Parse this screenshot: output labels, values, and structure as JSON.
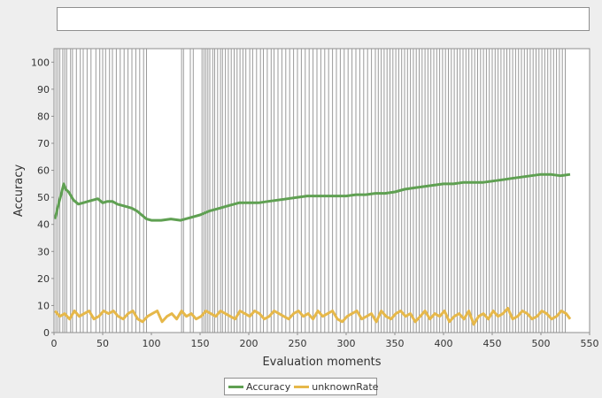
{
  "chart_data": {
    "type": "line",
    "title": "",
    "xlabel": "Evaluation moments",
    "ylabel": "Accuracy",
    "xlim": [
      0,
      550
    ],
    "ylim": [
      0,
      105
    ],
    "x_ticks": [
      0,
      50,
      100,
      150,
      200,
      250,
      300,
      350,
      400,
      450,
      500,
      550
    ],
    "y_ticks": [
      0,
      10,
      20,
      30,
      40,
      50,
      60,
      70,
      80,
      90,
      100
    ],
    "grid": false,
    "legend_position": "bottom-center",
    "colors": {
      "Accuracy": "#5fa052",
      "unknownRate": "#e6b84a",
      "event_lines": "#9a9a9a"
    },
    "series": [
      {
        "name": "Accuracy",
        "x": [
          1,
          5,
          8,
          10,
          12,
          15,
          20,
          25,
          30,
          35,
          40,
          45,
          50,
          55,
          60,
          65,
          70,
          75,
          80,
          85,
          90,
          95,
          100,
          110,
          120,
          130,
          140,
          150,
          160,
          170,
          180,
          190,
          200,
          210,
          220,
          230,
          240,
          250,
          260,
          270,
          280,
          290,
          300,
          310,
          320,
          330,
          340,
          350,
          360,
          370,
          380,
          390,
          400,
          410,
          420,
          430,
          440,
          450,
          460,
          470,
          480,
          490,
          500,
          510,
          520,
          530
        ],
        "values": [
          42,
          48,
          52,
          55,
          53,
          52,
          49,
          47.5,
          48,
          48.5,
          49,
          49.5,
          48,
          48.5,
          48.5,
          47.5,
          47,
          46.5,
          46,
          45,
          43.5,
          42,
          41.5,
          41.5,
          42,
          41.5,
          42.5,
          43.5,
          45,
          46,
          47,
          48,
          48,
          48,
          48.5,
          49,
          49.5,
          50,
          50.5,
          50.5,
          50.5,
          50.5,
          50.5,
          51,
          51,
          51.5,
          51.5,
          52,
          53,
          53.5,
          54,
          54.5,
          55,
          55,
          55.5,
          55.5,
          55.5,
          56,
          56.5,
          57,
          57.5,
          58,
          58.5,
          58.5,
          58,
          58.5
        ]
      },
      {
        "name": "unknownRate",
        "x": [
          1,
          6,
          11,
          16,
          21,
          26,
          31,
          36,
          41,
          46,
          51,
          56,
          61,
          66,
          71,
          76,
          81,
          86,
          91,
          96,
          101,
          106,
          111,
          116,
          121,
          126,
          131,
          136,
          141,
          146,
          151,
          156,
          161,
          166,
          171,
          176,
          181,
          186,
          191,
          196,
          201,
          206,
          211,
          216,
          221,
          226,
          231,
          236,
          241,
          246,
          251,
          256,
          261,
          266,
          271,
          276,
          281,
          286,
          291,
          296,
          301,
          306,
          311,
          316,
          321,
          326,
          331,
          336,
          341,
          346,
          351,
          356,
          361,
          366,
          371,
          376,
          381,
          386,
          391,
          396,
          401,
          406,
          411,
          416,
          421,
          426,
          431,
          436,
          441,
          446,
          451,
          456,
          461,
          466,
          471,
          476,
          481,
          486,
          491,
          496,
          501,
          506,
          511,
          516,
          521,
          526,
          530
        ],
        "values": [
          8,
          6,
          7,
          5,
          8,
          6,
          7,
          8,
          5,
          6,
          8,
          7,
          8,
          6,
          5,
          7,
          8,
          5,
          4,
          6,
          7,
          8,
          4,
          6,
          7,
          5,
          8,
          6,
          7,
          5,
          6,
          8,
          7,
          6,
          8,
          7,
          6,
          5,
          8,
          7,
          6,
          8,
          7,
          5,
          6,
          8,
          7,
          6,
          5,
          7,
          8,
          6,
          7,
          5,
          8,
          6,
          7,
          8,
          5,
          4,
          6,
          7,
          8,
          5,
          6,
          7,
          4,
          8,
          6,
          5,
          7,
          8,
          6,
          7,
          4,
          6,
          8,
          5,
          7,
          6,
          8,
          4,
          6,
          7,
          5,
          8,
          3,
          6,
          7,
          5,
          8,
          6,
          7,
          9,
          5,
          6,
          8,
          7,
          5,
          6,
          8,
          7,
          5,
          6,
          8,
          7,
          5
        ]
      }
    ],
    "event_markers": [
      2,
      4,
      6,
      9,
      11,
      13,
      17,
      19,
      23,
      27,
      30,
      34,
      38,
      43,
      47,
      50,
      53,
      57,
      60,
      64,
      68,
      72,
      76,
      80,
      84,
      88,
      92,
      95,
      131,
      133,
      140,
      143,
      152,
      154,
      156,
      158,
      160,
      163,
      165,
      168,
      171,
      173,
      176,
      179,
      182,
      185,
      188,
      191,
      194,
      197,
      201,
      204,
      208,
      212,
      215,
      219,
      223,
      226,
      230,
      234,
      238,
      242,
      246,
      250,
      254,
      258,
      262,
      266,
      270,
      274,
      278,
      282,
      286,
      290,
      294,
      298,
      302,
      306,
      310,
      314,
      318,
      322,
      326,
      330,
      333,
      336,
      339,
      342,
      345,
      348,
      351,
      354,
      357,
      360,
      363,
      366,
      369,
      372,
      375,
      378,
      381,
      384,
      387,
      390,
      393,
      396,
      399,
      402,
      405,
      408,
      411,
      414,
      417,
      420,
      423,
      426,
      429,
      432,
      435,
      438,
      441,
      444,
      447,
      450,
      453,
      456,
      459,
      462,
      465,
      468,
      471,
      474,
      477,
      480,
      483,
      486,
      489,
      492,
      495,
      498,
      501,
      504,
      507,
      510,
      513,
      516,
      519,
      522,
      525
    ]
  },
  "legend": {
    "accuracy_label": "Accuracy",
    "unknown_label": "unknownRate"
  }
}
